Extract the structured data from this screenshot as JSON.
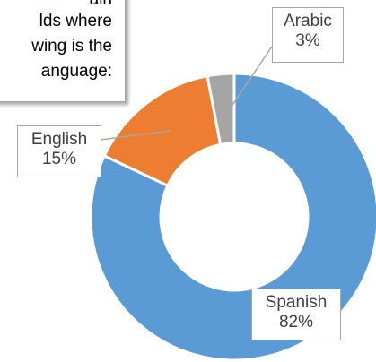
{
  "note": {
    "lines": [
      "ain",
      "lds where",
      "wing is the",
      "anguage:"
    ]
  },
  "chart_data": {
    "type": "pie",
    "variant": "donut",
    "categories": [
      "Spanish",
      "English",
      "Arabic"
    ],
    "values": [
      82,
      15,
      3
    ],
    "percent_labels": [
      "82%",
      "15%",
      "3%"
    ],
    "colors": [
      "#5b9bd5",
      "#ed7d31",
      "#a5a5a5"
    ],
    "legend": "none",
    "title": ""
  }
}
